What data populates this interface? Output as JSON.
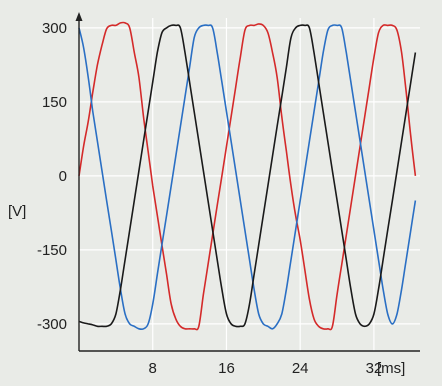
{
  "chart_data": {
    "type": "line",
    "title": "",
    "xlabel": "",
    "ylabel": "",
    "x_unit": "[ms]",
    "y_unit": "[V]",
    "xlim": [
      0,
      37
    ],
    "ylim": [
      -355,
      320
    ],
    "x_ticks": [
      8,
      16,
      24,
      32
    ],
    "y_ticks": [
      300,
      150,
      0,
      -150,
      -300
    ],
    "grid": {
      "vertical": true,
      "horizontal": true,
      "color": "#ffffff"
    },
    "legend": "none",
    "series": [
      {
        "color": "#d42a2a",
        "x": [
          0,
          0.5,
          1,
          1.5,
          2,
          2.5,
          3,
          3.5,
          4,
          4.5,
          5,
          5.5,
          6,
          6.5,
          7,
          7.5,
          8,
          8.5,
          9,
          9.5,
          10,
          10.5,
          11,
          11.5,
          12,
          12.5,
          13,
          13.5,
          14,
          14.5,
          15,
          15.5,
          16,
          16.5,
          17,
          17.5,
          18,
          18.5,
          19,
          19.5,
          20,
          20.5,
          21,
          21.5,
          22,
          22.5,
          23,
          23.5,
          24,
          24.5,
          25,
          25.5,
          26,
          26.5,
          27,
          27.5,
          28,
          28.5,
          29,
          29.5,
          30,
          30.5,
          31,
          31.5,
          32,
          32.5,
          33,
          33.5,
          34,
          34.5,
          35,
          35.5,
          36,
          36.5
        ],
        "values": [
          0,
          60,
          110,
          170,
          225,
          265,
          298,
          305,
          305,
          310,
          310,
          300,
          250,
          200,
          120,
          50,
          -20,
          -80,
          -140,
          -200,
          -260,
          -290,
          -305,
          -310,
          -310,
          -310,
          -305,
          -240,
          -180,
          -120,
          -60,
          0,
          60,
          120,
          180,
          240,
          295,
          305,
          305,
          308,
          305,
          290,
          250,
          200,
          120,
          50,
          -20,
          -80,
          -130,
          -190,
          -250,
          -290,
          -305,
          -310,
          -310,
          -305,
          -240,
          -180,
          -120,
          -60,
          0,
          60,
          120,
          180,
          240,
          290,
          305,
          305,
          305,
          295,
          250,
          170,
          80,
          0
        ]
      },
      {
        "color": "#2a6fc4",
        "x": [
          0,
          0.5,
          1,
          1.5,
          2,
          2.5,
          3,
          3.5,
          4,
          4.5,
          5,
          5.5,
          6,
          6.5,
          7,
          7.5,
          8,
          8.5,
          9,
          9.5,
          10,
          10.5,
          11,
          11.5,
          12,
          12.5,
          13,
          13.5,
          14,
          14.5,
          15,
          15.5,
          16,
          16.5,
          17,
          17.5,
          18,
          18.5,
          19,
          19.5,
          20,
          20.5,
          21,
          21.5,
          22,
          22.5,
          23,
          23.5,
          24,
          24.5,
          25,
          25.5,
          26,
          26.5,
          27,
          27.5,
          28,
          28.5,
          29,
          29.5,
          30,
          30.5,
          31,
          31.5,
          32,
          32.5,
          33,
          33.5,
          34,
          34.5,
          35,
          35.5,
          36,
          36.5
        ],
        "values": [
          300,
          260,
          200,
          130,
          70,
          10,
          -50,
          -110,
          -170,
          -230,
          -280,
          -300,
          -305,
          -310,
          -310,
          -300,
          -260,
          -200,
          -140,
          -80,
          -20,
          40,
          100,
          160,
          220,
          280,
          300,
          305,
          305,
          300,
          250,
          190,
          130,
          70,
          10,
          -50,
          -110,
          -170,
          -230,
          -280,
          -300,
          -305,
          -310,
          -300,
          -280,
          -230,
          -170,
          -110,
          -50,
          10,
          70,
          130,
          190,
          250,
          295,
          305,
          305,
          300,
          250,
          190,
          130,
          70,
          10,
          -50,
          -110,
          -170,
          -230,
          -280,
          -300,
          -280,
          -230,
          -170,
          -110,
          -50
        ]
      },
      {
        "color": "#1a1a1a",
        "x": [
          0,
          0.5,
          1,
          1.5,
          2,
          2.5,
          3,
          3.5,
          4,
          4.5,
          5,
          5.5,
          6,
          6.5,
          7,
          7.5,
          8,
          8.5,
          9,
          9.5,
          10,
          10.5,
          11,
          11.5,
          12,
          12.5,
          13,
          13.5,
          14,
          14.5,
          15,
          15.5,
          16,
          16.5,
          17,
          17.5,
          18,
          18.5,
          19,
          19.5,
          20,
          20.5,
          21,
          21.5,
          22,
          22.5,
          23,
          23.5,
          24,
          24.5,
          25,
          25.5,
          26,
          26.5,
          27,
          27.5,
          28,
          28.5,
          29,
          29.5,
          30,
          30.5,
          31,
          31.5,
          32,
          32.5,
          33,
          33.5,
          34,
          34.5,
          35,
          35.5,
          36,
          36.5
        ],
        "values": [
          -295,
          -298,
          -300,
          -302,
          -305,
          -305,
          -305,
          -300,
          -280,
          -230,
          -170,
          -110,
          -50,
          10,
          70,
          130,
          190,
          250,
          290,
          300,
          305,
          305,
          300,
          250,
          190,
          130,
          70,
          10,
          -50,
          -110,
          -170,
          -230,
          -280,
          -300,
          -305,
          -305,
          -300,
          -260,
          -200,
          -140,
          -80,
          -20,
          40,
          100,
          160,
          220,
          280,
          300,
          305,
          305,
          300,
          250,
          190,
          130,
          70,
          10,
          -50,
          -110,
          -170,
          -230,
          -280,
          -300,
          -305,
          -300,
          -280,
          -230,
          -170,
          -110,
          -50,
          10,
          70,
          130,
          190,
          250
        ]
      }
    ]
  }
}
